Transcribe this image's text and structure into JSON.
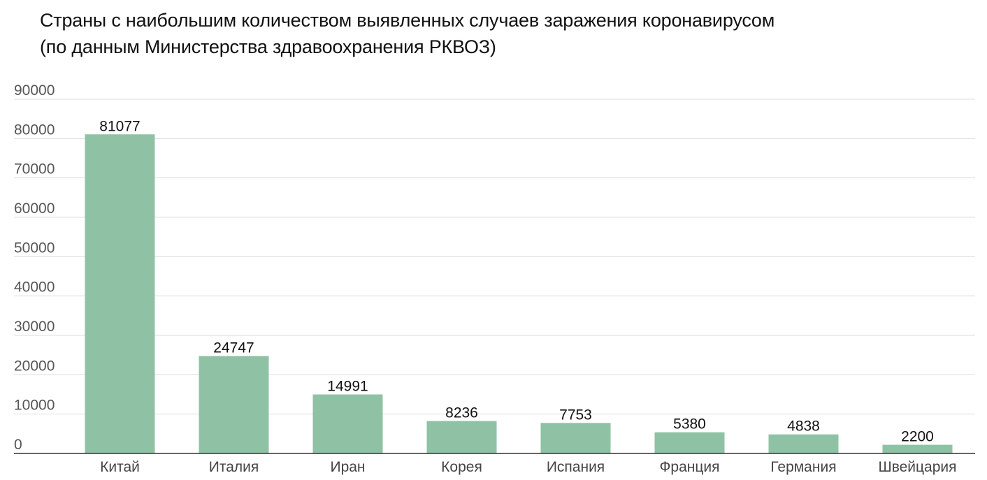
{
  "chart_data": {
    "type": "bar",
    "title_lines": [
      "Страны с наибольшим количеством выявленных случаев заражения коронавирусом",
      "(по данным Министерства здравоохранения РКВОЗ)"
    ],
    "categories": [
      "Китай",
      "Италия",
      "Иран",
      "Корея",
      "Испания",
      "Франция",
      "Германия",
      "Швейцария"
    ],
    "values": [
      81077,
      24747,
      14991,
      8236,
      7753,
      5380,
      4838,
      2200
    ],
    "data_labels": [
      "81077",
      "24747",
      "14991",
      "8236",
      "7753",
      "5380",
      "4838",
      "2200"
    ],
    "y_ticks": [
      "0",
      "10000",
      "20000",
      "30000",
      "40000",
      "50000",
      "60000",
      "70000",
      "80000",
      "90000"
    ],
    "ylim": [
      0,
      90000
    ],
    "xlabel": "",
    "ylabel": "",
    "grid": true,
    "legend": "none",
    "colors": {
      "bar": "#8fc2a5",
      "grid": "#dddddd",
      "axis": "#333333"
    }
  }
}
